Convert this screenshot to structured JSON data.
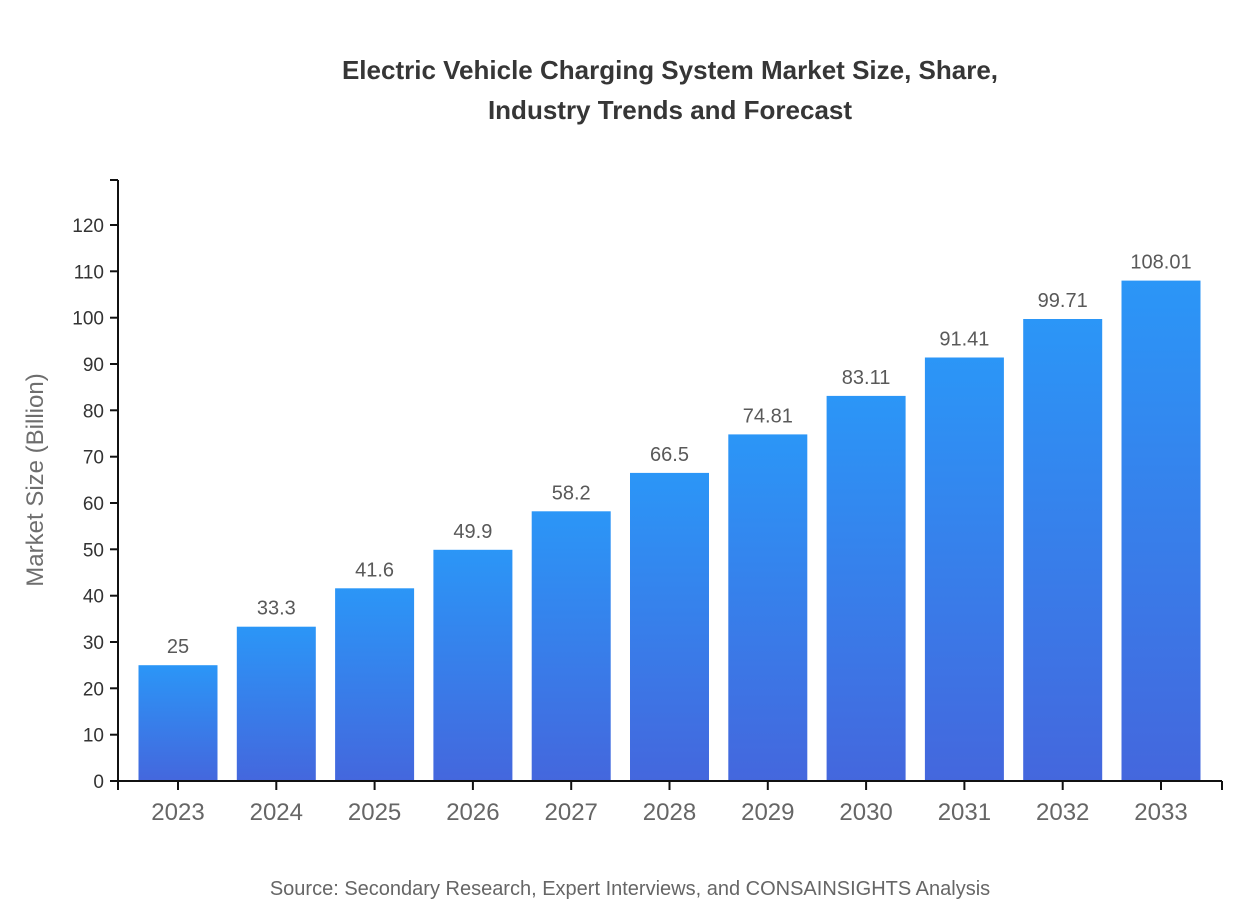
{
  "chart_data": {
    "type": "bar",
    "title": "Electric Vehicle Charging System Market Size, Share, Industry Trends and Forecast",
    "title_lines": [
      "Electric Vehicle Charging System Market Size, Share,",
      "Industry Trends and Forecast"
    ],
    "categories": [
      "2023",
      "2024",
      "2025",
      "2026",
      "2027",
      "2028",
      "2029",
      "2030",
      "2031",
      "2032",
      "2033"
    ],
    "values": [
      25,
      33.3,
      41.6,
      49.9,
      58.2,
      66.5,
      74.81,
      83.11,
      91.41,
      99.71,
      108.01
    ],
    "value_labels": [
      "25",
      "33.3",
      "41.6",
      "49.9",
      "58.2",
      "66.5",
      "74.81",
      "83.11",
      "91.41",
      "99.71",
      "108.01"
    ],
    "xlabel": "",
    "ylabel": "Market Size (Billion)",
    "ylim": [
      0,
      130
    ],
    "ytick_max": 120,
    "ytick_step": 10,
    "grid": false,
    "legend": "none",
    "source_note": "Source: Secondary Research, Expert Interviews, and CONSAINSIGHTS Analysis",
    "colors": {
      "bar_gradient_top": "#2b96f7",
      "bar_gradient_bottom": "#4467dd",
      "axis": "#111111",
      "title_text": "#363636",
      "ytick_text": "#333333",
      "xtick_text": "#666666",
      "value_label_text": "#595959",
      "axis_label_text": "#6e6e6e",
      "source_text": "#666666"
    }
  }
}
